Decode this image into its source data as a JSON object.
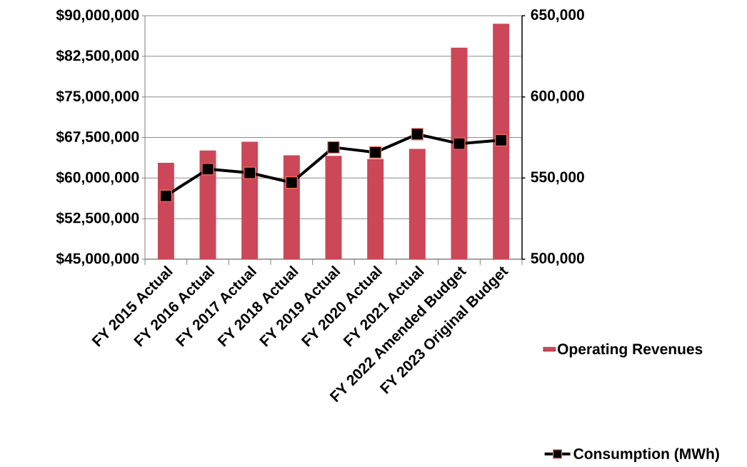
{
  "chart_data": {
    "type": "bar",
    "categories": [
      "FY 2015 Actual",
      "FY 2016 Actual",
      "FY 2017 Actual",
      "FY 2018 Actual",
      "FY 2019 Actual",
      "FY 2020 Actual",
      "FY 2021 Actual",
      "FY 2022 Amended Budget",
      "FY 2023 Original Budget"
    ],
    "series": [
      {
        "name": "Operating Revenues",
        "color": "#cc4757",
        "values": [
          62800000,
          65100000,
          66700000,
          64200000,
          64100000,
          63500000,
          65400000,
          84100000,
          88500000
        ]
      },
      {
        "name": "Consumption (MWh)",
        "type": "line",
        "axis": "y2",
        "color": "#000000",
        "marker": "square",
        "values": [
          539000,
          555500,
          553200,
          547200,
          568900,
          565800,
          577000,
          571200,
          573300
        ]
      }
    ],
    "ylim": [
      45000000,
      90000000
    ],
    "yticks": [
      {
        "value": 45000000,
        "label": "$45,000,000"
      },
      {
        "value": 52500000,
        "label": "$52,500,000"
      },
      {
        "value": 60000000,
        "label": "$60,000,000"
      },
      {
        "value": 67500000,
        "label": "$67,500,000"
      },
      {
        "value": 75000000,
        "label": "$75,000,000"
      },
      {
        "value": 82500000,
        "label": "$82,500,000"
      },
      {
        "value": 90000000,
        "label": "$90,000,000"
      }
    ],
    "y2lim": [
      500000,
      650000
    ],
    "y2ticks": [
      {
        "value": 500000,
        "label": "500,000"
      },
      {
        "value": 550000,
        "label": "550,000"
      },
      {
        "value": 600000,
        "label": "600,000"
      },
      {
        "value": 650000,
        "label": "650,000"
      }
    ],
    "grid": "y",
    "legend": "right"
  }
}
